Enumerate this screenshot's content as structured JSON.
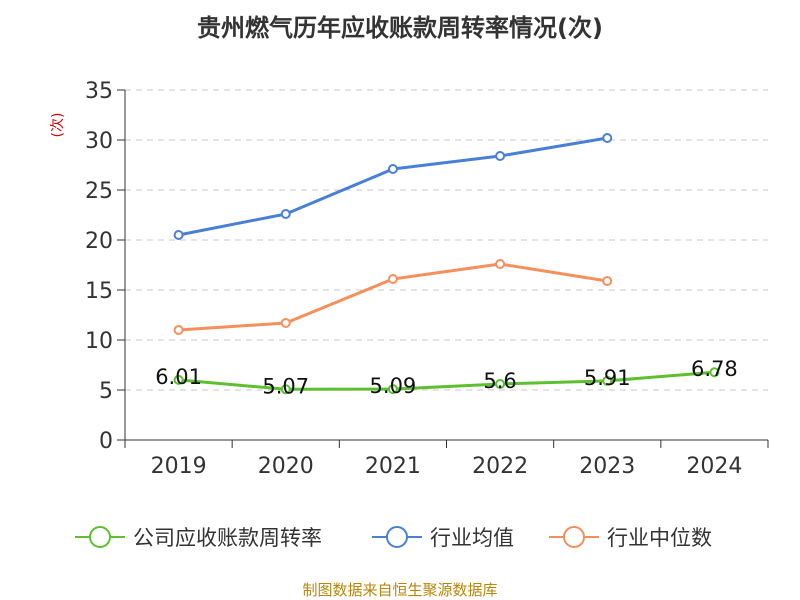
{
  "chart_data": {
    "type": "line",
    "title": "贵州燃气历年应收账款周转率情况(次)",
    "ylabel": "(次)",
    "xlabel": "",
    "categories": [
      "2019",
      "2020",
      "2021",
      "2022",
      "2023",
      "2024"
    ],
    "ylim": [
      0,
      35
    ],
    "yticks": [
      0,
      5,
      10,
      15,
      20,
      25,
      30,
      35
    ],
    "grid": true,
    "legend_position": "bottom",
    "series": [
      {
        "name": "公司应收账款周转率",
        "color": "#5cc02f",
        "values": [
          6.01,
          5.07,
          5.09,
          5.6,
          5.91,
          6.78
        ],
        "data_labels": [
          "6.01",
          "5.07",
          "5.09",
          "5.6",
          "5.91",
          "6.78"
        ]
      },
      {
        "name": "行业均值",
        "color": "#4a7fd6",
        "values": [
          20.5,
          22.6,
          27.1,
          28.4,
          30.2,
          null
        ]
      },
      {
        "name": "行业中位数",
        "color": "#f58f5c",
        "values": [
          11.0,
          11.7,
          16.1,
          17.6,
          15.9,
          null
        ]
      }
    ]
  },
  "source": "制图数据来自恒生聚源数据库"
}
